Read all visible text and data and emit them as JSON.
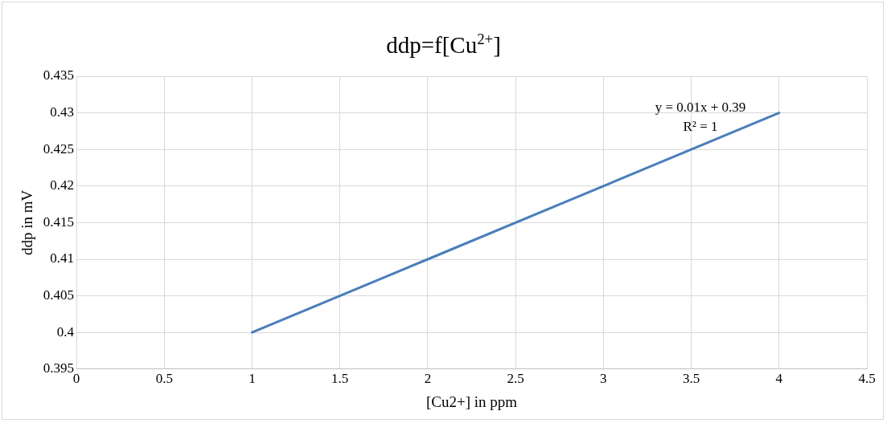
{
  "chart_data": {
    "type": "line",
    "title": "ddp=f[Cu$^{2+}$]",
    "xlabel": "[Cu2+] in ppm",
    "ylabel": "ddp in mV",
    "x": [
      1,
      2,
      3,
      4
    ],
    "series": [
      {
        "color": "#4a7ebb",
        "values": [
          0.4,
          0.41,
          0.42,
          0.43
        ]
      }
    ],
    "xlim": [
      0,
      4.5
    ],
    "xticks": [
      0,
      0.5,
      1,
      1.5,
      2,
      2.5,
      3,
      3.5,
      4,
      4.5
    ],
    "ylim": [
      0.395,
      0.435
    ],
    "yticks": [
      0.395,
      0.4,
      0.405,
      0.41,
      0.415,
      0.42,
      0.425,
      0.43,
      0.435
    ],
    "grid": true,
    "legend": false,
    "marker": "none",
    "line_style": "solid",
    "annotations": [
      "y = 0.01x + 0.39",
      "R² = 1"
    ]
  }
}
